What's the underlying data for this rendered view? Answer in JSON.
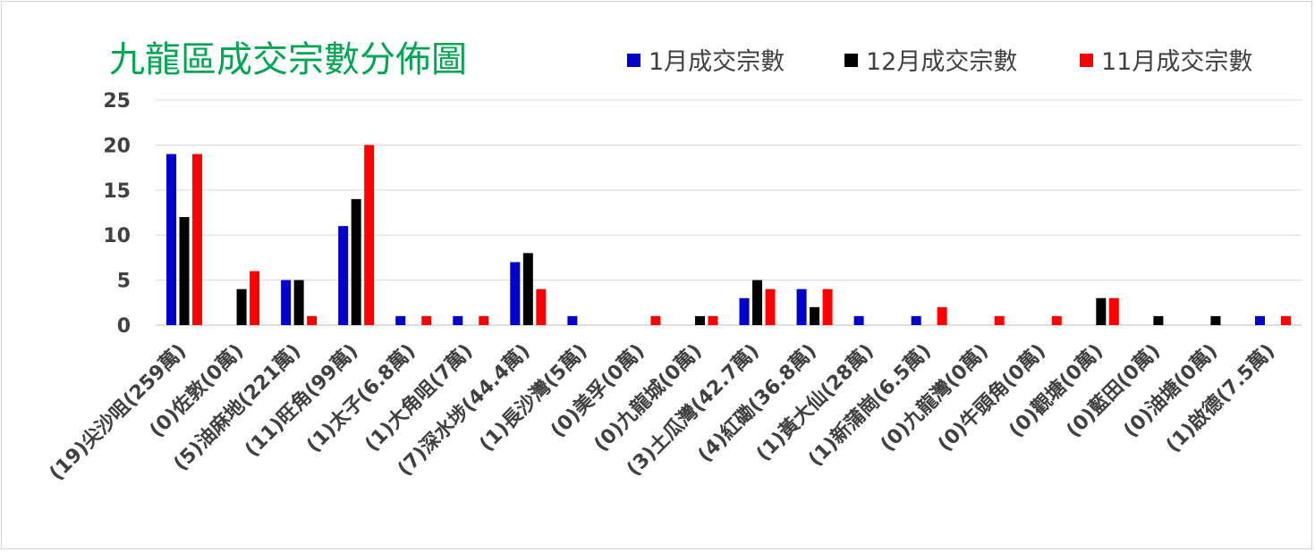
{
  "chart_data": {
    "type": "bar",
    "title": "九龍區成交宗數分佈圖",
    "xlabel": "",
    "ylabel": "",
    "ylim": [
      0,
      25
    ],
    "yticks": [
      "0",
      "5",
      "10",
      "15",
      "20",
      "25"
    ],
    "grid": true,
    "legend_position": "top-right",
    "categories": [
      "(19)尖沙咀(259萬)",
      "(0)佐敦(0萬)",
      "(5)油麻地(221萬)",
      "(11)旺角(99萬)",
      "(1)太子(6.8萬)",
      "(1)大角咀(7萬)",
      "(7)深水埗(44.4萬)",
      "(1)長沙灣(5萬)",
      "(0)美孚(0萬)",
      "(0)九龍城(0萬)",
      "(3)土瓜灣(42.7萬)",
      "(4)紅磡(36.8萬)",
      "(1)黃大仙(28萬)",
      "(1)新蒲崗(6.5萬)",
      "(0)九龍灣(0萬)",
      "(0)牛頭角(0萬)",
      "(0)觀塘(0萬)",
      "(0)藍田(0萬)",
      "(0)油塘(0萬)",
      "(1)啟德(7.5萬)"
    ],
    "series": [
      {
        "name": "1月成交宗數",
        "color": "#0000cc",
        "values": [
          19,
          0,
          5,
          11,
          1,
          1,
          7,
          1,
          0,
          0,
          3,
          4,
          1,
          1,
          0,
          0,
          0,
          0,
          0,
          1
        ]
      },
      {
        "name": "12月成交宗數",
        "color": "#000000",
        "values": [
          12,
          4,
          5,
          14,
          0,
          0,
          8,
          0,
          0,
          1,
          5,
          2,
          0,
          0,
          0,
          0,
          3,
          1,
          1,
          0
        ]
      },
      {
        "name": "11月成交宗數",
        "color": "#ff0000",
        "values": [
          19,
          6,
          1,
          20,
          1,
          1,
          4,
          0,
          1,
          1,
          4,
          4,
          0,
          2,
          1,
          1,
          3,
          0,
          0,
          1
        ]
      }
    ]
  }
}
